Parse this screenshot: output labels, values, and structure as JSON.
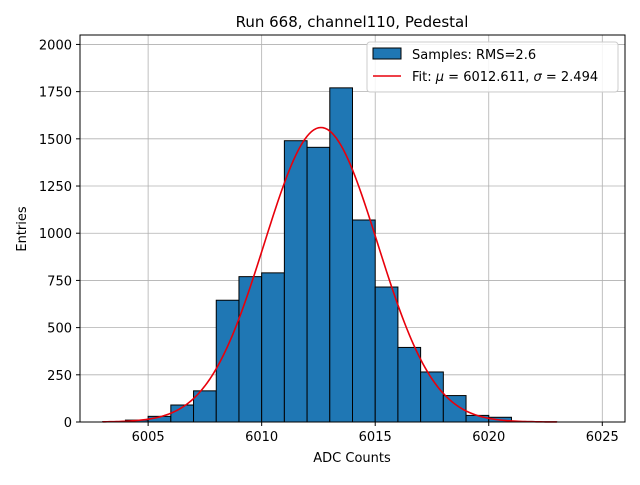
{
  "chart_data": {
    "type": "bar",
    "title": "Run 668, channel110, Pedestal",
    "xlabel": "ADC Counts",
    "ylabel": "Entries",
    "xlim": [
      6002.0,
      6026.0
    ],
    "ylim": [
      0,
      2050
    ],
    "x_ticks": [
      6005,
      6010,
      6015,
      6020,
      6025
    ],
    "y_ticks": [
      0,
      250,
      500,
      750,
      1000,
      1250,
      1500,
      1750,
      2000
    ],
    "grid": true,
    "legend_position": "top-right",
    "bin_width": 1,
    "histogram": {
      "name": "Samples: RMS=2.6",
      "bin_left_edges": [
        6003,
        6004,
        6005,
        6006,
        6007,
        6008,
        6009,
        6010,
        6011,
        6012,
        6013,
        6014,
        6015,
        6016,
        6017,
        6018,
        6019,
        6020,
        6021,
        6022
      ],
      "values": [
        2,
        10,
        30,
        90,
        165,
        645,
        770,
        790,
        1490,
        1455,
        1770,
        1070,
        715,
        395,
        265,
        140,
        35,
        25,
        3,
        1
      ]
    },
    "fit": {
      "name": "Fit: μ = 6012.611, σ = 2.494",
      "name_parts": {
        "prefix": "Fit: ",
        "mu": "μ",
        "mu_value": " = 6012.611, ",
        "sigma": "σ",
        "sigma_value": " = 2.494"
      },
      "mu": 6012.611,
      "sigma": 2.494,
      "amplitude": 1560,
      "x_range": [
        6003,
        6023
      ]
    },
    "colors": {
      "bar": "#1f77b4",
      "fit": "#e8000b"
    }
  }
}
